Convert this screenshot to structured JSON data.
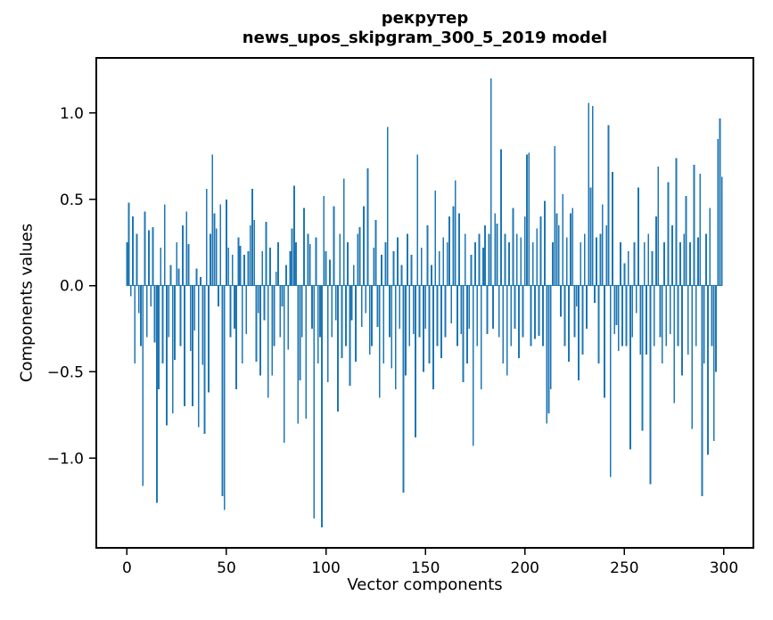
{
  "chart_data": {
    "type": "bar",
    "title": "рекрутер\nnews_upos_skipgram_300_5_2019 model",
    "title_line1": "рекрутер",
    "title_line2": "news_upos_skipgram_300_5_2019 model",
    "xlabel": "Vector components",
    "ylabel": "Components values",
    "bar_color": "#1f77b4",
    "spine_color": "#000000",
    "background_color": "#ffffff",
    "bar_width": 0.8,
    "n_components": 300,
    "xlim": [
      -15.4,
      314.8
    ],
    "ylim": [
      -1.52,
      1.32
    ],
    "xticks": [
      {
        "v": 0,
        "label": "0"
      },
      {
        "v": 50,
        "label": "50"
      },
      {
        "v": 100,
        "label": "100"
      },
      {
        "v": 150,
        "label": "150"
      },
      {
        "v": 200,
        "label": "200"
      },
      {
        "v": 250,
        "label": "250"
      },
      {
        "v": 300,
        "label": "300"
      }
    ],
    "yticks": [
      {
        "v": 1.0,
        "label": "1.0"
      },
      {
        "v": 0.5,
        "label": "0.5"
      },
      {
        "v": 0.0,
        "label": "0.0"
      },
      {
        "v": -0.5,
        "label": "−0.5"
      },
      {
        "v": -1.0,
        "label": "−1.0"
      }
    ],
    "values": [
      0.25,
      0.48,
      -0.06,
      0.4,
      -0.45,
      0.3,
      -0.16,
      -0.35,
      -1.16,
      0.43,
      -0.3,
      0.32,
      -0.12,
      0.34,
      -0.33,
      -1.26,
      -0.6,
      0.22,
      -0.45,
      0.47,
      -0.81,
      -0.3,
      0.12,
      -0.74,
      -0.43,
      0.25,
      0.1,
      -0.35,
      0.35,
      -0.7,
      0.43,
      0.24,
      -0.38,
      -0.7,
      -0.26,
      0.1,
      -0.82,
      0.05,
      -0.46,
      -0.86,
      0.56,
      -0.62,
      0.3,
      0.76,
      0.42,
      0.33,
      -0.12,
      0.47,
      -1.22,
      -1.3,
      0.5,
      0.22,
      -0.3,
      0.18,
      -0.25,
      -0.6,
      0.28,
      0.23,
      -0.45,
      0.18,
      -0.28,
      0.2,
      0.35,
      0.56,
      0.38,
      -0.44,
      -0.16,
      -0.52,
      0.2,
      -0.2,
      0.37,
      -0.65,
      0.22,
      -0.52,
      -0.35,
      0.08,
      0.25,
      -0.3,
      -0.12,
      -0.91,
      0.12,
      -0.37,
      0.2,
      0.33,
      0.58,
      0.25,
      -0.8,
      -0.55,
      -0.3,
      0.45,
      -0.77,
      0.3,
      0.24,
      -0.25,
      -1.35,
      0.28,
      -0.45,
      -0.3,
      -1.4,
      0.52,
      0.2,
      -0.56,
      0.15,
      -0.3,
      0.46,
      -0.2,
      -0.73,
      0.3,
      -0.42,
      0.62,
      -0.35,
      0.25,
      -0.58,
      -0.2,
      0.12,
      -0.44,
      0.3,
      0.34,
      -0.24,
      0.46,
      -0.16,
      0.68,
      -0.4,
      -0.35,
      0.22,
      0.38,
      -0.24,
      -0.65,
      0.18,
      -0.45,
      0.25,
      0.92,
      -0.3,
      -0.48,
      0.2,
      -0.6,
      0.28,
      -0.25,
      0.12,
      -1.2,
      -0.52,
      0.3,
      -0.35,
      0.18,
      -0.28,
      -0.88,
      0.76,
      -0.3,
      0.22,
      -0.5,
      -0.25,
      0.35,
      -0.45,
      0.12,
      -0.6,
      0.55,
      -0.35,
      0.2,
      -0.42,
      0.28,
      -0.3,
      0.25,
      0.4,
      -0.22,
      0.46,
      0.61,
      -0.35,
      0.42,
      -0.28,
      -0.56,
      0.3,
      -0.45,
      -0.25,
      0.18,
      -0.93,
      0.25,
      -0.35,
      0.3,
      -0.6,
      0.22,
      0.35,
      -0.28,
      0.3,
      1.2,
      -0.25,
      0.42,
      0.36,
      -0.3,
      0.79,
      -0.45,
      0.3,
      -0.52,
      0.25,
      -0.35,
      0.45,
      -0.25,
      0.3,
      -0.42,
      0.28,
      -0.3,
      0.4,
      0.76,
      0.77,
      -0.35,
      0.25,
      -0.31,
      0.33,
      -0.29,
      0.4,
      -0.35,
      0.49,
      -0.8,
      -0.74,
      -0.6,
      0.25,
      0.81,
      0.42,
      0.35,
      -0.18,
      0.53,
      -0.35,
      0.28,
      -0.44,
      0.42,
      0.45,
      -0.3,
      -0.12,
      -0.55,
      0.25,
      -0.4,
      0.3,
      -0.25,
      1.06,
      0.57,
      1.04,
      -0.1,
      0.28,
      -0.45,
      0.3,
      0.47,
      -0.65,
      0.35,
      0.93,
      -1.11,
      0.66,
      -0.28,
      -0.23,
      -0.38,
      0.25,
      -0.35,
      0.13,
      -0.35,
      0.2,
      -0.95,
      -0.3,
      0.25,
      -0.16,
      0.57,
      -0.4,
      -0.84,
      0.25,
      -0.4,
      0.3,
      -1.15,
      0.2,
      -0.35,
      0.4,
      0.69,
      -0.3,
      -0.45,
      0.25,
      -0.35,
      0.6,
      -0.28,
      0.35,
      -0.68,
      0.74,
      -0.35,
      0.25,
      -0.52,
      0.3,
      0.52,
      -0.4,
      0.25,
      -0.83,
      0.7,
      -0.35,
      0.28,
      0.65,
      -1.22,
      -0.45,
      0.3,
      -0.98,
      0.45,
      -0.35,
      -0.9,
      -0.5,
      0.85,
      0.97,
      0.63
    ]
  }
}
